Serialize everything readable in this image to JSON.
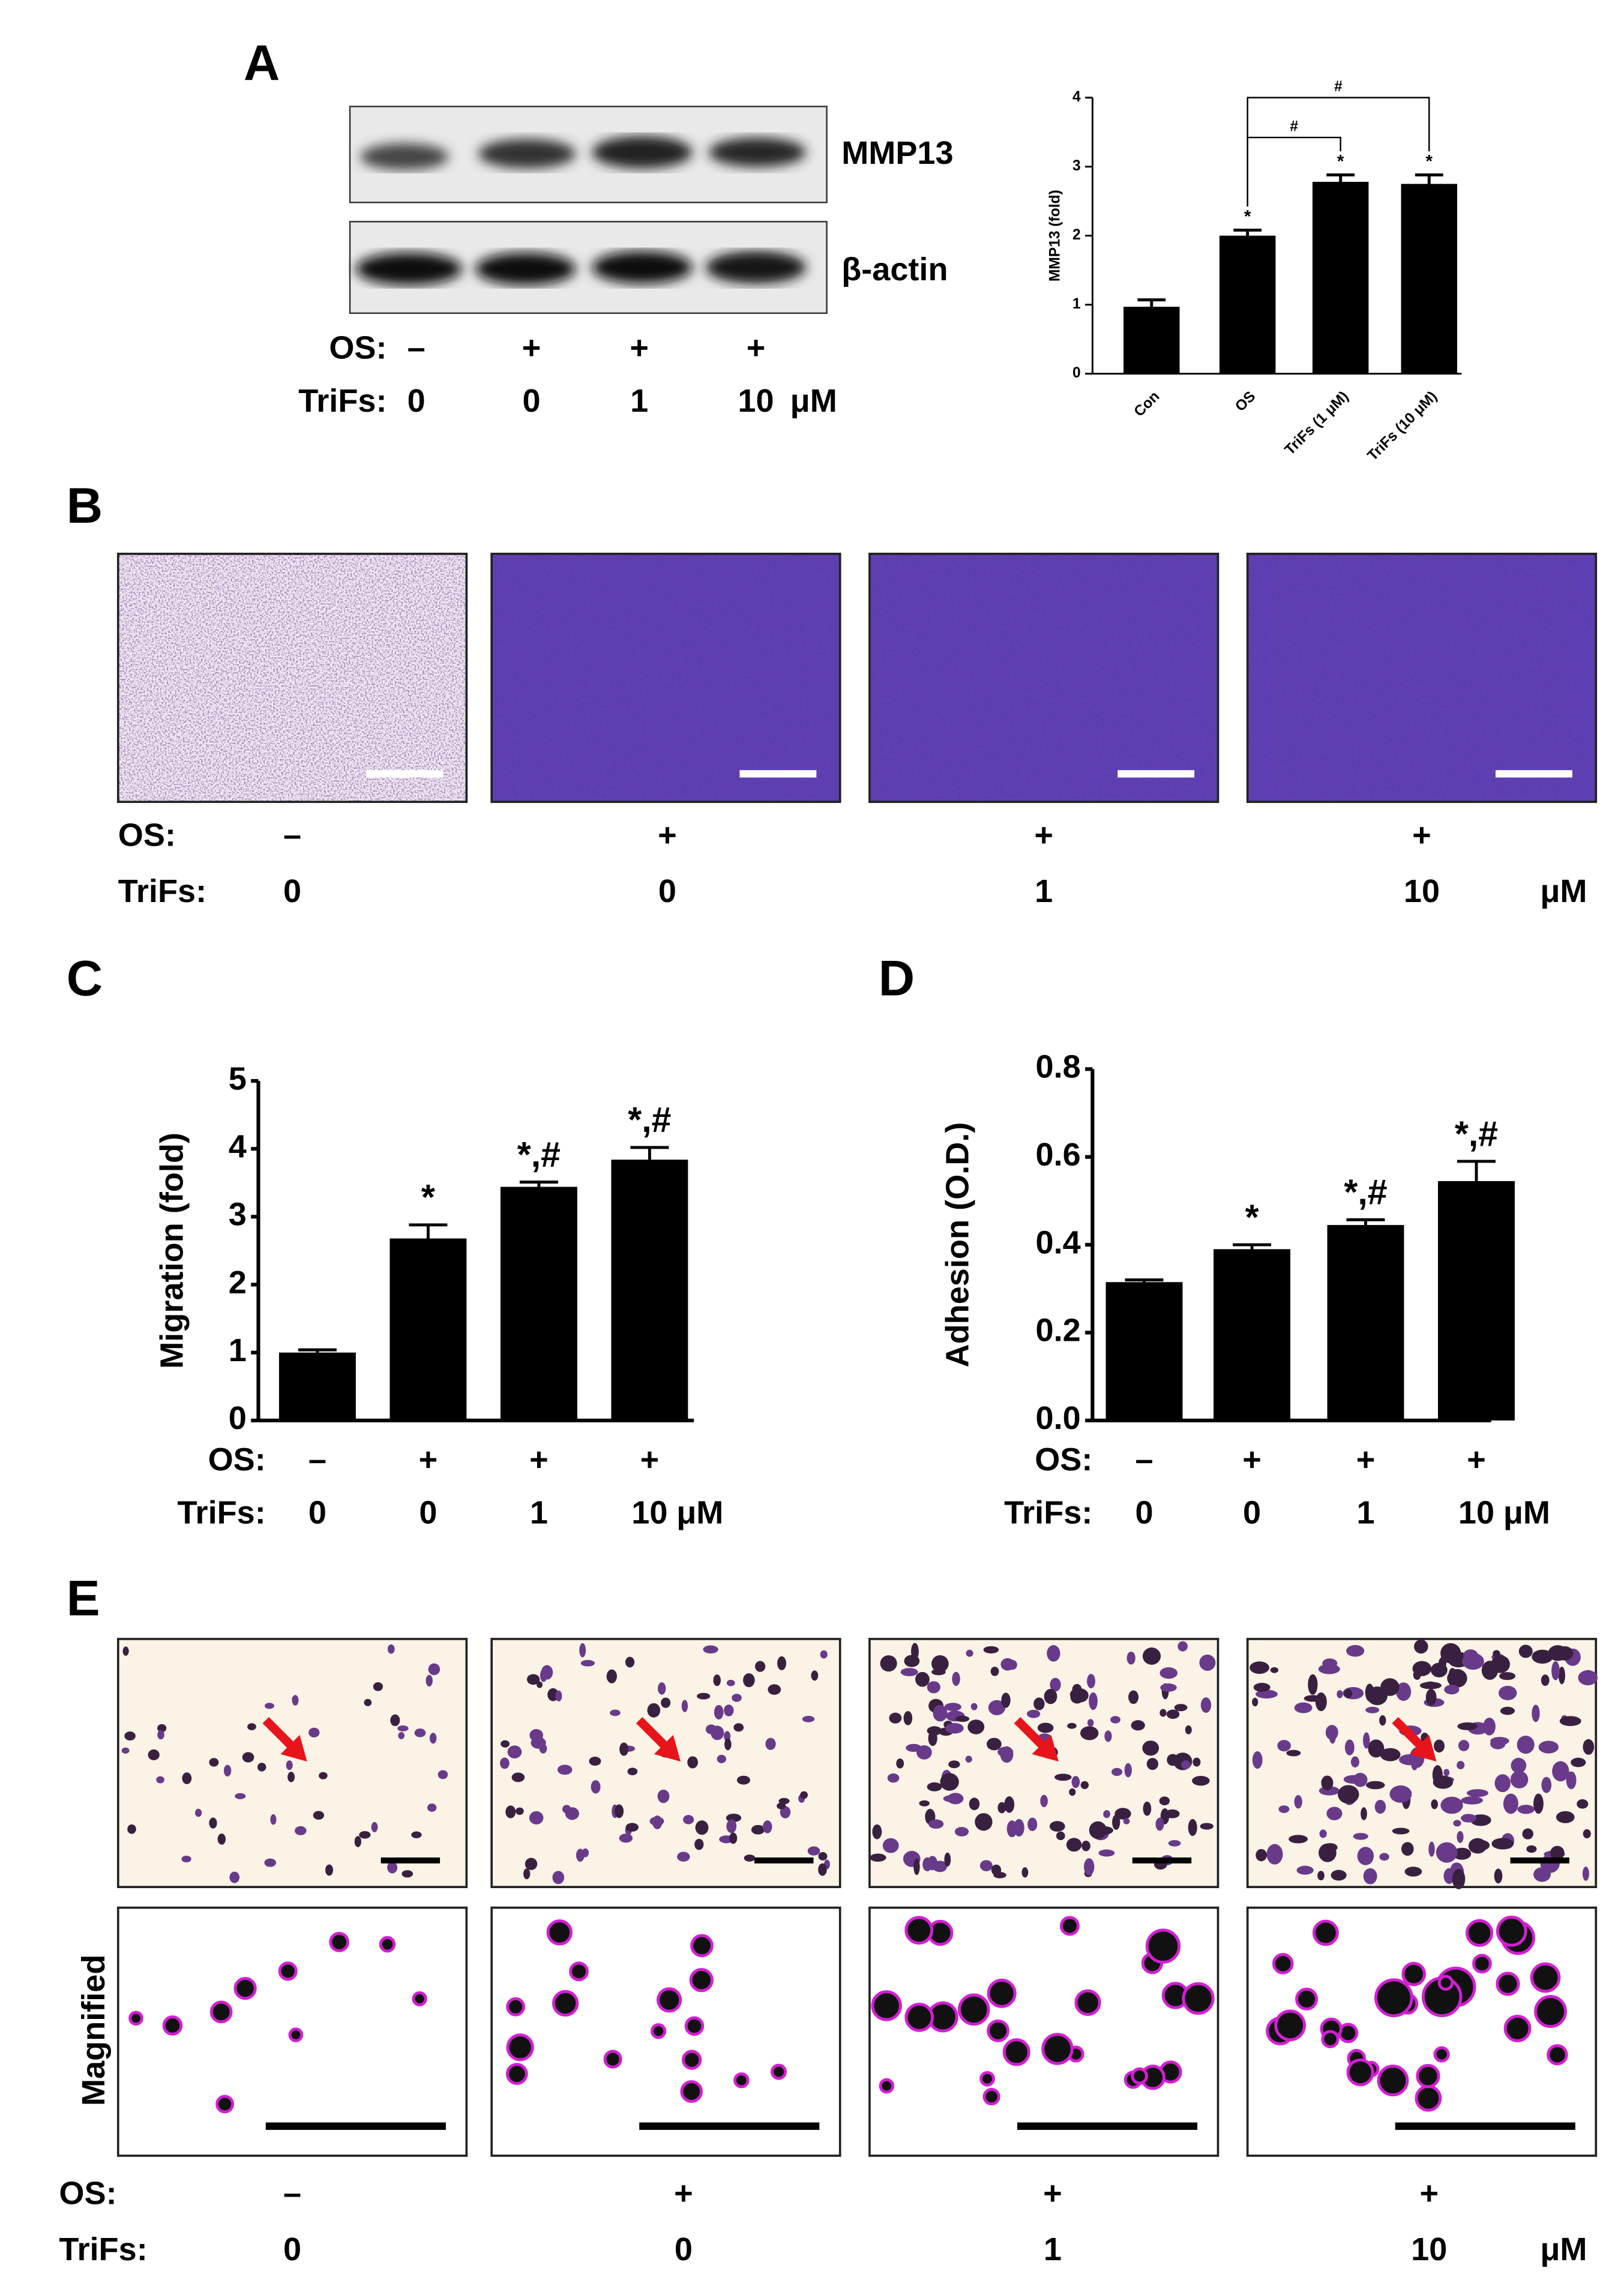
{
  "panel_labels": [
    "A",
    "B",
    "C",
    "D",
    "E"
  ],
  "blot_labels": [
    "MMP13",
    "β-actin"
  ],
  "magnified_label": "Magnified",
  "treatments": [
    {
      "os_label": "OS:",
      "os": [
        "–",
        "+",
        "+",
        "+"
      ],
      "trifs_label": "TriFs:",
      "trifs": [
        "0",
        "0",
        "1",
        "10"
      ],
      "unit": "μM"
    },
    {
      "os_label": "OS:",
      "os": [
        "–",
        "+",
        "+",
        "+"
      ],
      "trifs_label": "TriFs:",
      "trifs": [
        "0",
        "0",
        "1",
        "10"
      ],
      "unit": "μM"
    },
    {
      "os_label": "OS:",
      "os": [
        "–",
        "+",
        "+",
        "+"
      ],
      "trifs_label": "TriFs:",
      "trifs": [
        "0",
        "0",
        "1",
        "10"
      ],
      "unit": "μM"
    },
    {
      "os_label": "OS:",
      "os": [
        "–",
        "+",
        "+",
        "+"
      ],
      "trifs_label": "TriFs:",
      "trifs": [
        "0",
        "0",
        "1",
        "10"
      ],
      "unit": "μM"
    },
    {
      "os_label": "OS:",
      "os": [
        "–",
        "+",
        "+",
        "+"
      ],
      "trifs_label": "TriFs:",
      "trifs": [
        "0",
        "0",
        "1",
        "10"
      ],
      "unit": "μM"
    }
  ],
  "chart_data": [
    {
      "type": "bar",
      "ylabel": "MMP13 (fold)",
      "categories": [
        "Con",
        "OS",
        "TriFs (1 μM)",
        "TriFs (10 μM)"
      ],
      "series": [
        {
          "color": "#000000",
          "values": [
            0.97,
            2.0,
            2.78,
            2.75
          ],
          "errors": [
            0.1,
            0.08,
            0.1,
            0.13
          ]
        }
      ],
      "annotations": [
        null,
        "*",
        "*",
        "*"
      ],
      "brackets": [
        {
          "label": "#",
          "between": [
            "OS",
            "TriFs (1 μM)"
          ]
        },
        {
          "label": "#",
          "between": [
            "OS",
            "TriFs (10 μM)"
          ]
        }
      ],
      "ylim": [
        0,
        4
      ],
      "yticks": [
        0,
        1,
        2,
        3,
        4
      ]
    },
    {
      "type": "bar",
      "ylabel": "Migration (fold)",
      "series": [
        {
          "color": "#000000",
          "values": [
            1.0,
            2.68,
            3.44,
            3.84
          ],
          "errors": [
            0.04,
            0.2,
            0.07,
            0.18
          ]
        }
      ],
      "annotations": [
        null,
        "*",
        "*,#",
        "*,#"
      ],
      "ylim": [
        0,
        5
      ],
      "yticks": [
        0,
        1,
        2,
        3,
        4,
        5
      ]
    },
    {
      "type": "bar",
      "ylabel": "Adhesion (O.D.)",
      "series": [
        {
          "color": "#000000",
          "values": [
            0.315,
            0.39,
            0.445,
            0.545
          ],
          "errors": [
            0.005,
            0.01,
            0.012,
            0.045
          ]
        }
      ],
      "annotations": [
        null,
        "*",
        "*,#",
        "*,#"
      ],
      "ylim": [
        0,
        0.8
      ],
      "yticks": [
        {
          "value": 0,
          "label": "0.0"
        },
        0.2,
        0.4,
        0.6,
        0.8
      ]
    }
  ]
}
